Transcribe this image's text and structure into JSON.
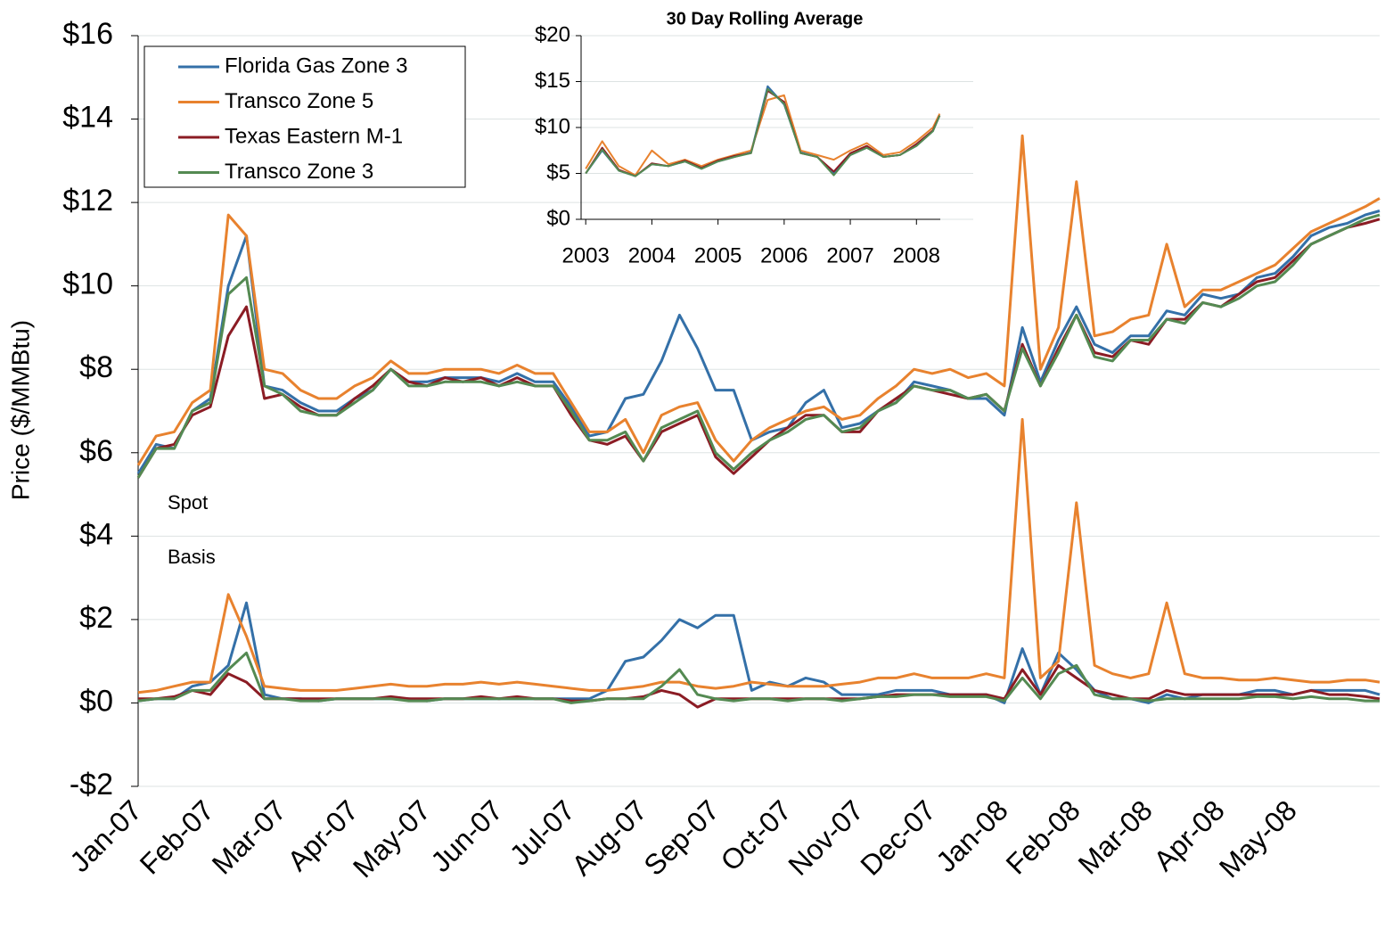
{
  "chart_data": {
    "type": "line",
    "y_label": "Price ($/MMBtu)",
    "annotations": [
      "Spot",
      "Basis"
    ],
    "grid": true,
    "legend": "upper left",
    "xlim": [
      0,
      17.2
    ],
    "xticks": [
      {
        "value": 0,
        "label": "Jan-07"
      },
      {
        "value": 1,
        "label": "Feb-07"
      },
      {
        "value": 2,
        "label": "Mar-07"
      },
      {
        "value": 3,
        "label": "Apr-07"
      },
      {
        "value": 4,
        "label": "May-07"
      },
      {
        "value": 5,
        "label": "Jun-07"
      },
      {
        "value": 6,
        "label": "Jul-07"
      },
      {
        "value": 7,
        "label": "Aug-07"
      },
      {
        "value": 8,
        "label": "Sep-07"
      },
      {
        "value": 9,
        "label": "Oct-07"
      },
      {
        "value": 10,
        "label": "Nov-07"
      },
      {
        "value": 11,
        "label": "Dec-07"
      },
      {
        "value": 12,
        "label": "Jan-08"
      },
      {
        "value": 13,
        "label": "Feb-08"
      },
      {
        "value": 14,
        "label": "Mar-08"
      },
      {
        "value": 15,
        "label": "Apr-08"
      },
      {
        "value": 16,
        "label": "May-08"
      }
    ],
    "ylim": [
      -2,
      16
    ],
    "yticks": [
      {
        "value": -2,
        "label": "-$2"
      },
      {
        "value": 0,
        "label": "$0"
      },
      {
        "value": 2,
        "label": "$2"
      },
      {
        "value": 4,
        "label": "$4"
      },
      {
        "value": 6,
        "label": "$6"
      },
      {
        "value": 8,
        "label": "$8"
      },
      {
        "value": 10,
        "label": "$10"
      },
      {
        "value": 12,
        "label": "$12"
      },
      {
        "value": 14,
        "label": "$14"
      },
      {
        "value": 16,
        "label": "$16"
      }
    ],
    "x": [
      0,
      0.25,
      0.5,
      0.75,
      1,
      1.25,
      1.5,
      1.75,
      2,
      2.25,
      2.5,
      2.75,
      3,
      3.25,
      3.5,
      3.75,
      4,
      4.25,
      4.5,
      4.75,
      5,
      5.25,
      5.5,
      5.75,
      6,
      6.25,
      6.5,
      6.75,
      7,
      7.25,
      7.5,
      7.75,
      8,
      8.25,
      8.5,
      8.75,
      9,
      9.25,
      9.5,
      9.75,
      10,
      10.25,
      10.5,
      10.75,
      11,
      11.25,
      11.5,
      11.75,
      12,
      12.25,
      12.5,
      12.75,
      13,
      13.25,
      13.5,
      13.75,
      14,
      14.25,
      14.5,
      14.75,
      15,
      15.25,
      15.5,
      15.75,
      16,
      16.25,
      16.5,
      16.75,
      17,
      17.2
    ],
    "series": [
      {
        "name": "Florida Gas Zone 3",
        "color": "#3470a8",
        "values": [
          5.5,
          6.2,
          6.1,
          7.0,
          7.3,
          10.0,
          11.2,
          7.6,
          7.5,
          7.2,
          7.0,
          7.0,
          7.3,
          7.5,
          8.0,
          7.7,
          7.7,
          7.8,
          7.8,
          7.8,
          7.7,
          7.9,
          7.7,
          7.7,
          7.1,
          6.4,
          6.5,
          7.3,
          7.4,
          8.2,
          9.3,
          8.5,
          7.5,
          7.5,
          6.3,
          6.5,
          6.6,
          7.2,
          7.5,
          6.6,
          6.7,
          7.0,
          7.2,
          7.7,
          7.6,
          7.5,
          7.3,
          7.3,
          6.9,
          9.0,
          7.7,
          8.7,
          9.5,
          8.6,
          8.4,
          8.8,
          8.8,
          9.4,
          9.3,
          9.8,
          9.7,
          9.8,
          10.2,
          10.3,
          10.7,
          11.2,
          11.4,
          11.5,
          11.7,
          11.8
        ],
        "basis": [
          0.05,
          0.1,
          0.1,
          0.4,
          0.5,
          0.9,
          2.4,
          0.2,
          0.1,
          0.1,
          0.05,
          0.1,
          0.1,
          0.1,
          0.1,
          0.1,
          0.05,
          0.1,
          0.1,
          0.1,
          0.1,
          0.1,
          0.1,
          0.1,
          0.1,
          0.1,
          0.3,
          1.0,
          1.1,
          1.5,
          2.0,
          1.8,
          2.1,
          2.1,
          0.3,
          0.5,
          0.4,
          0.6,
          0.5,
          0.2,
          0.2,
          0.2,
          0.3,
          0.3,
          0.3,
          0.2,
          0.2,
          0.2,
          0.0,
          1.3,
          0.2,
          1.2,
          0.8,
          0.3,
          0.1,
          0.1,
          0.0,
          0.2,
          0.1,
          0.2,
          0.2,
          0.2,
          0.3,
          0.3,
          0.2,
          0.3,
          0.3,
          0.3,
          0.3,
          0.2
        ],
        "rolling_average": [
          5.0,
          7.5,
          5.3,
          4.7,
          6.0,
          5.8,
          6.3,
          5.5,
          6.3,
          6.8,
          7.3,
          14.5,
          12.5,
          7.3,
          6.8,
          5.0,
          7.0,
          7.8,
          6.8,
          7.0,
          8.0,
          9.6,
          11.3
        ]
      },
      {
        "name": "Transco Zone 5",
        "color": "#e8822e",
        "values": [
          5.7,
          6.4,
          6.5,
          7.2,
          7.5,
          11.7,
          11.2,
          8.0,
          7.9,
          7.5,
          7.3,
          7.3,
          7.6,
          7.8,
          8.2,
          7.9,
          7.9,
          8.0,
          8.0,
          8.0,
          7.9,
          8.1,
          7.9,
          7.9,
          7.2,
          6.5,
          6.5,
          6.8,
          6.0,
          6.9,
          7.1,
          7.2,
          6.3,
          5.8,
          6.3,
          6.6,
          6.8,
          7.0,
          7.1,
          6.8,
          6.9,
          7.3,
          7.6,
          8.0,
          7.9,
          8.0,
          7.8,
          7.9,
          7.6,
          13.6,
          8.0,
          9.0,
          12.5,
          8.8,
          8.9,
          9.2,
          9.3,
          11.0,
          9.5,
          9.9,
          9.9,
          10.1,
          10.3,
          10.5,
          10.9,
          11.3,
          11.5,
          11.7,
          11.9,
          12.1
        ],
        "basis": [
          0.25,
          0.3,
          0.4,
          0.5,
          0.5,
          2.6,
          1.6,
          0.4,
          0.35,
          0.3,
          0.3,
          0.3,
          0.35,
          0.4,
          0.45,
          0.4,
          0.4,
          0.45,
          0.45,
          0.5,
          0.45,
          0.5,
          0.45,
          0.4,
          0.35,
          0.3,
          0.3,
          0.35,
          0.4,
          0.5,
          0.5,
          0.4,
          0.35,
          0.4,
          0.5,
          0.45,
          0.4,
          0.4,
          0.4,
          0.45,
          0.5,
          0.6,
          0.6,
          0.7,
          0.6,
          0.6,
          0.6,
          0.7,
          0.6,
          6.8,
          0.6,
          1.0,
          4.8,
          0.9,
          0.7,
          0.6,
          0.7,
          2.4,
          0.7,
          0.6,
          0.6,
          0.55,
          0.55,
          0.6,
          0.55,
          0.5,
          0.5,
          0.55,
          0.55,
          0.5
        ],
        "rolling_average": [
          5.5,
          8.5,
          5.8,
          4.8,
          7.5,
          6.0,
          6.5,
          5.8,
          6.5,
          7.0,
          7.5,
          13.0,
          13.5,
          7.5,
          7.0,
          6.5,
          7.5,
          8.3,
          7.0,
          7.3,
          8.5,
          10.0,
          11.5
        ]
      },
      {
        "name": "Texas Eastern M-1",
        "color": "#8b1c24",
        "values": [
          5.4,
          6.1,
          6.2,
          6.9,
          7.1,
          8.8,
          9.5,
          7.3,
          7.4,
          7.1,
          6.9,
          6.9,
          7.3,
          7.6,
          8.0,
          7.7,
          7.6,
          7.8,
          7.7,
          7.8,
          7.6,
          7.8,
          7.6,
          7.6,
          6.9,
          6.3,
          6.2,
          6.4,
          5.8,
          6.5,
          6.7,
          6.9,
          5.9,
          5.5,
          5.9,
          6.3,
          6.6,
          6.9,
          6.9,
          6.5,
          6.5,
          7.0,
          7.3,
          7.6,
          7.5,
          7.4,
          7.3,
          7.4,
          7.0,
          8.6,
          7.6,
          8.5,
          9.3,
          8.4,
          8.3,
          8.7,
          8.6,
          9.2,
          9.2,
          9.6,
          9.5,
          9.8,
          10.1,
          10.2,
          10.6,
          11.0,
          11.2,
          11.4,
          11.5,
          11.6
        ],
        "basis": [
          0.1,
          0.1,
          0.15,
          0.3,
          0.2,
          0.7,
          0.5,
          0.1,
          0.1,
          0.1,
          0.1,
          0.1,
          0.1,
          0.1,
          0.15,
          0.1,
          0.1,
          0.1,
          0.1,
          0.15,
          0.1,
          0.15,
          0.1,
          0.1,
          0.05,
          0.05,
          0.1,
          0.1,
          0.15,
          0.3,
          0.2,
          -0.1,
          0.1,
          0.1,
          0.1,
          0.1,
          0.1,
          0.1,
          0.1,
          0.1,
          0.1,
          0.15,
          0.2,
          0.2,
          0.2,
          0.2,
          0.2,
          0.2,
          0.1,
          0.8,
          0.2,
          0.9,
          0.6,
          0.3,
          0.2,
          0.1,
          0.1,
          0.3,
          0.2,
          0.2,
          0.2,
          0.2,
          0.2,
          0.2,
          0.2,
          0.3,
          0.2,
          0.2,
          0.15,
          0.1
        ],
        "rolling_average": [
          5.0,
          7.8,
          5.4,
          4.7,
          6.1,
          5.8,
          6.4,
          5.6,
          6.4,
          6.9,
          7.2,
          14.0,
          12.8,
          7.2,
          6.8,
          5.2,
          7.2,
          8.0,
          6.8,
          7.0,
          8.2,
          9.7,
          11.3
        ]
      },
      {
        "name": "Transco Zone 3",
        "color": "#548a52",
        "values": [
          5.4,
          6.1,
          6.1,
          7.0,
          7.2,
          9.8,
          10.2,
          7.6,
          7.4,
          7.0,
          6.9,
          6.9,
          7.2,
          7.5,
          8.0,
          7.6,
          7.6,
          7.7,
          7.7,
          7.7,
          7.6,
          7.7,
          7.6,
          7.6,
          7.0,
          6.3,
          6.3,
          6.5,
          5.8,
          6.6,
          6.8,
          7.0,
          6.0,
          5.6,
          6.0,
          6.3,
          6.5,
          6.8,
          6.9,
          6.5,
          6.6,
          7.0,
          7.2,
          7.6,
          7.5,
          7.5,
          7.3,
          7.4,
          7.0,
          8.5,
          7.6,
          8.4,
          9.3,
          8.3,
          8.2,
          8.7,
          8.7,
          9.2,
          9.1,
          9.6,
          9.5,
          9.7,
          10.0,
          10.1,
          10.5,
          11.0,
          11.2,
          11.4,
          11.6,
          11.7
        ],
        "basis": [
          0.05,
          0.1,
          0.1,
          0.3,
          0.3,
          0.8,
          1.2,
          0.1,
          0.1,
          0.05,
          0.05,
          0.1,
          0.1,
          0.1,
          0.1,
          0.05,
          0.05,
          0.1,
          0.1,
          0.1,
          0.1,
          0.1,
          0.1,
          0.1,
          0.0,
          0.05,
          0.1,
          0.1,
          0.1,
          0.4,
          0.8,
          0.2,
          0.1,
          0.05,
          0.1,
          0.1,
          0.05,
          0.1,
          0.1,
          0.05,
          0.1,
          0.15,
          0.15,
          0.2,
          0.2,
          0.15,
          0.15,
          0.15,
          0.05,
          0.6,
          0.1,
          0.7,
          0.9,
          0.2,
          0.1,
          0.1,
          0.05,
          0.1,
          0.1,
          0.1,
          0.1,
          0.1,
          0.15,
          0.15,
          0.1,
          0.15,
          0.1,
          0.1,
          0.05,
          0.05
        ],
        "rolling_average": [
          5.0,
          7.6,
          5.3,
          4.7,
          6.0,
          5.8,
          6.3,
          5.5,
          6.3,
          6.8,
          7.2,
          14.2,
          12.6,
          7.2,
          6.8,
          4.8,
          7.0,
          7.8,
          6.8,
          7.0,
          8.0,
          9.6,
          11.3
        ]
      }
    ],
    "inset": {
      "title": "30 Day Rolling Average",
      "x": [
        2003,
        2003.25,
        2003.5,
        2003.75,
        2004,
        2004.25,
        2004.5,
        2004.75,
        2005,
        2005.25,
        2005.5,
        2005.75,
        2006,
        2006.25,
        2006.5,
        2006.75,
        2007,
        2007.25,
        2007.5,
        2007.75,
        2008,
        2008.25,
        2008.35
      ],
      "xlim": [
        2002.93,
        2008.36
      ],
      "xticks": [
        2003,
        2004,
        2005,
        2006,
        2007,
        2008
      ],
      "ylim": [
        0,
        20
      ],
      "yticks": [
        {
          "value": 0,
          "label": "$0"
        },
        {
          "value": 5,
          "label": "$5"
        },
        {
          "value": 10,
          "label": "$10"
        },
        {
          "value": 15,
          "label": "$15"
        },
        {
          "value": 20,
          "label": "$20"
        }
      ]
    }
  }
}
